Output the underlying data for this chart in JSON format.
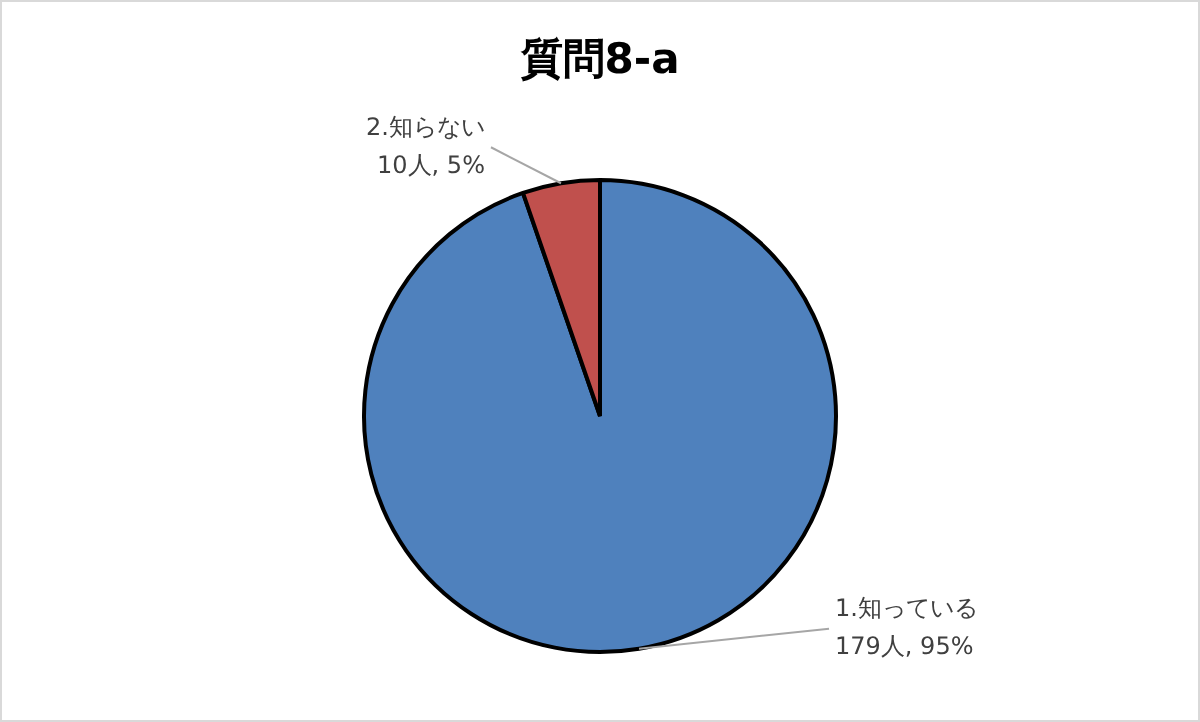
{
  "chart_data": {
    "type": "pie",
    "title": "質問8-a",
    "categories": [
      "1.知っている",
      "2.知らない"
    ],
    "values": [
      179,
      10
    ],
    "value_labels": [
      "179人, 95%",
      "10人, 5%"
    ],
    "colors": [
      "#4f81bd",
      "#c0504d"
    ],
    "legend": false
  }
}
